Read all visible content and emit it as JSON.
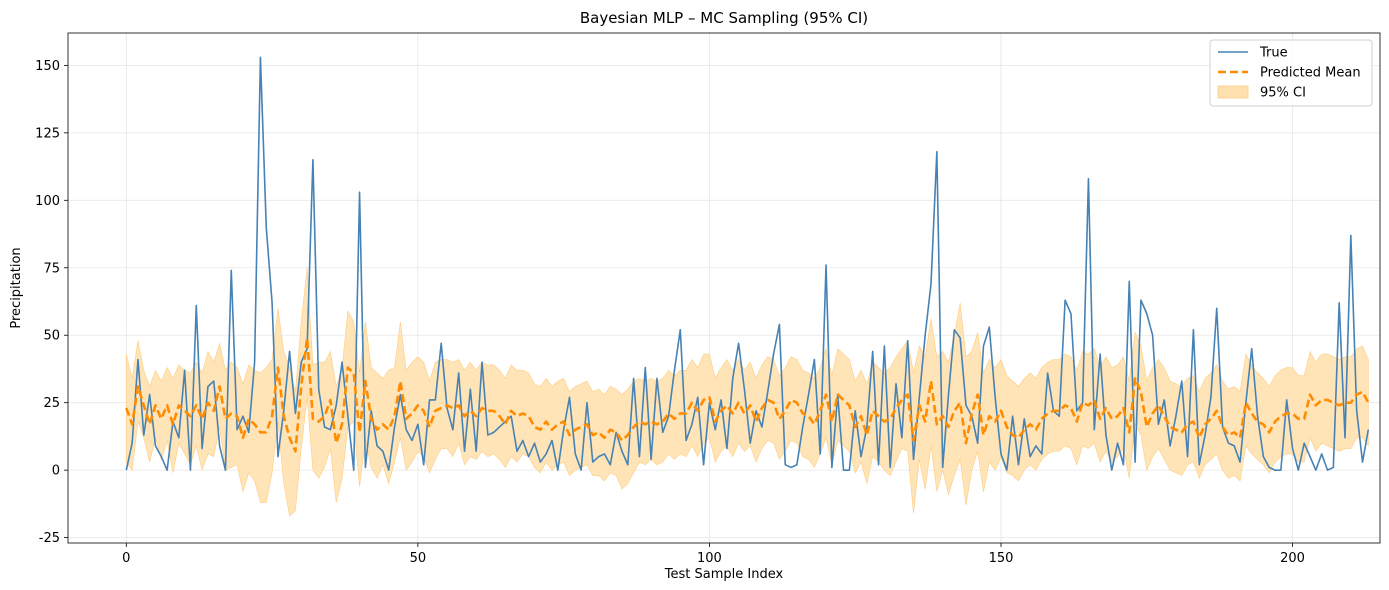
{
  "chart_data": {
    "type": "line",
    "title": "Bayesian MLP – MC Sampling (95% CI)",
    "xlabel": "Test Sample Index",
    "ylabel": "Precipitation",
    "xlim": [
      -10,
      215
    ],
    "ylim": [
      -27,
      162
    ],
    "xticks": [
      0,
      50,
      100,
      150,
      200
    ],
    "yticks": [
      -25,
      0,
      25,
      50,
      75,
      100,
      125,
      150
    ],
    "grid": true,
    "legend_position": "top-right",
    "colors": {
      "true": "#4682b4",
      "mean": "#ff8c00",
      "ci": "#ffe1b0",
      "ci_edge": "#ffcc80"
    },
    "series": [
      {
        "name": "True",
        "style": "solid",
        "values": [
          0,
          10,
          41,
          13,
          28,
          9,
          5,
          0,
          18,
          12,
          37,
          0,
          61,
          8,
          31,
          33,
          9,
          0,
          74,
          15,
          20,
          14,
          40,
          153,
          90,
          62,
          5,
          22,
          44,
          21,
          40,
          45,
          115,
          30,
          16,
          15,
          24,
          40,
          20,
          0,
          103,
          1,
          22,
          9,
          7,
          0,
          16,
          28,
          15,
          11,
          17,
          2,
          26,
          26,
          47,
          23,
          15,
          36,
          7,
          30,
          7,
          40,
          13,
          14,
          16,
          18,
          20,
          7,
          11,
          5,
          10,
          3,
          6,
          11,
          0,
          15,
          27,
          6,
          0,
          25,
          3,
          5,
          6,
          2,
          14,
          7,
          2,
          34,
          5,
          38,
          4,
          34,
          14,
          20,
          37,
          52,
          11,
          17,
          27,
          2,
          25,
          15,
          26,
          8,
          34,
          47,
          30,
          10,
          22,
          16,
          29,
          43,
          54,
          2,
          1,
          2,
          16,
          28,
          41,
          6,
          76,
          1,
          28,
          0,
          0,
          22,
          5,
          16,
          44,
          2,
          46,
          1,
          32,
          12,
          48,
          4,
          27,
          50,
          69,
          118,
          1,
          28,
          52,
          49,
          24,
          20,
          10,
          46,
          53,
          27,
          6,
          0,
          20,
          2,
          19,
          5,
          9,
          6,
          36,
          22,
          20,
          63,
          58,
          22,
          25,
          108,
          15,
          43,
          13,
          0,
          10,
          2,
          70,
          3,
          63,
          58,
          50,
          17,
          26,
          9,
          20,
          33,
          5,
          52,
          2,
          13,
          27,
          60,
          16,
          10,
          9,
          3,
          25,
          45,
          20,
          5,
          1,
          0,
          0,
          26,
          8,
          0,
          10,
          5,
          0,
          6,
          0,
          1,
          62,
          12,
          87,
          22,
          3,
          15
        ]
      },
      {
        "name": "Predicted Mean",
        "style": "dashed",
        "values": [
          23,
          17,
          31,
          24,
          17,
          24,
          19,
          24,
          17,
          24,
          22,
          20,
          24,
          19,
          25,
          22,
          31,
          19,
          21,
          20,
          12,
          19,
          17,
          14,
          14,
          20,
          38,
          20,
          12,
          7,
          31,
          49,
          19,
          18,
          20,
          26,
          10,
          17,
          38,
          36,
          14,
          33,
          19,
          15,
          17,
          15,
          20,
          33,
          19,
          21,
          24,
          22,
          16,
          22,
          23,
          24,
          23,
          24,
          20,
          22,
          20,
          23,
          22,
          22,
          20,
          17,
          22,
          20,
          21,
          20,
          16,
          15,
          18,
          15,
          17,
          18,
          13,
          15,
          16,
          17,
          13,
          14,
          12,
          15,
          14,
          11,
          13,
          16,
          18,
          17,
          18,
          17,
          18,
          21,
          19,
          21,
          21,
          25,
          22,
          26,
          27,
          18,
          22,
          24,
          21,
          25,
          21,
          24,
          18,
          23,
          26,
          25,
          19,
          22,
          26,
          25,
          21,
          20,
          17,
          22,
          28,
          18,
          28,
          26,
          24,
          16,
          20,
          13,
          22,
          20,
          18,
          19,
          23,
          26,
          28,
          11,
          24,
          18,
          33,
          17,
          20,
          16,
          22,
          25,
          10,
          21,
          28,
          13,
          20,
          18,
          22,
          16,
          13,
          12,
          15,
          17,
          15,
          19,
          21,
          22,
          22,
          24,
          23,
          18,
          25,
          24,
          26,
          19,
          23,
          19,
          20,
          23,
          14,
          34,
          29,
          16,
          21,
          24,
          20,
          16,
          15,
          14,
          17,
          18,
          12,
          17,
          19,
          22,
          16,
          13,
          14,
          12,
          25,
          21,
          18,
          17,
          14,
          18,
          20,
          21,
          21,
          19,
          19,
          28,
          24,
          26,
          26,
          25,
          24,
          25,
          25,
          28,
          29,
          25
        ]
      },
      {
        "name": "95% CI",
        "style": "band",
        "lower": [
          3,
          0,
          18,
          12,
          3,
          12,
          4,
          11,
          -1,
          10,
          6,
          2,
          9,
          0,
          6,
          5,
          16,
          0,
          1,
          2,
          -8,
          -1,
          -4,
          -12,
          -12,
          -1,
          18,
          -5,
          -17,
          -15,
          8,
          27,
          0,
          -3,
          1,
          8,
          -12,
          -3,
          16,
          18,
          -6,
          11,
          1,
          -3,
          2,
          -5,
          3,
          12,
          0,
          3,
          7,
          5,
          -1,
          4,
          8,
          8,
          5,
          10,
          2,
          5,
          4,
          7,
          5,
          6,
          4,
          1,
          5,
          3,
          6,
          5,
          1,
          -1,
          3,
          0,
          2,
          3,
          -2,
          0,
          1,
          2,
          -2,
          -2,
          -4,
          -1,
          -2,
          -7,
          -5,
          -1,
          3,
          2,
          4,
          2,
          3,
          6,
          4,
          6,
          5,
          9,
          5,
          10,
          12,
          3,
          7,
          9,
          5,
          10,
          7,
          9,
          3,
          8,
          11,
          10,
          4,
          7,
          11,
          10,
          5,
          4,
          1,
          6,
          12,
          2,
          11,
          9,
          7,
          -1,
          3,
          -5,
          5,
          3,
          0,
          -2,
          3,
          8,
          7,
          -16,
          4,
          -7,
          9,
          -8,
          0,
          -9,
          -2,
          4,
          -13,
          0,
          7,
          -8,
          3,
          0,
          5,
          -1,
          -2,
          -4,
          0,
          2,
          0,
          4,
          6,
          7,
          7,
          9,
          8,
          2,
          9,
          8,
          10,
          3,
          7,
          3,
          5,
          8,
          -3,
          17,
          13,
          0,
          5,
          8,
          4,
          0,
          -1,
          -2,
          2,
          3,
          -3,
          2,
          4,
          6,
          0,
          -3,
          -2,
          -4,
          9,
          6,
          4,
          2,
          -1,
          3,
          5,
          6,
          6,
          3,
          3,
          12,
          7,
          10,
          9,
          8,
          7,
          8,
          8,
          12,
          12,
          9
        ],
        "upper": [
          43,
          34,
          48,
          37,
          31,
          37,
          33,
          38,
          34,
          39,
          37,
          36,
          40,
          36,
          44,
          40,
          47,
          37,
          40,
          38,
          32,
          39,
          37,
          36,
          38,
          41,
          60,
          44,
          38,
          29,
          55,
          75,
          39,
          40,
          40,
          44,
          31,
          38,
          59,
          55,
          36,
          55,
          38,
          36,
          34,
          37,
          38,
          55,
          37,
          40,
          42,
          40,
          33,
          40,
          41,
          41,
          40,
          41,
          37,
          40,
          37,
          40,
          39,
          39,
          37,
          34,
          39,
          37,
          37,
          36,
          32,
          31,
          34,
          31,
          33,
          34,
          29,
          31,
          32,
          33,
          29,
          30,
          28,
          31,
          30,
          28,
          30,
          33,
          34,
          33,
          34,
          33,
          34,
          37,
          35,
          37,
          37,
          41,
          38,
          43,
          43,
          34,
          38,
          41,
          37,
          41,
          37,
          40,
          34,
          39,
          42,
          41,
          35,
          38,
          42,
          41,
          37,
          36,
          34,
          38,
          45,
          35,
          45,
          43,
          41,
          33,
          37,
          32,
          40,
          38,
          36,
          38,
          42,
          45,
          48,
          36,
          46,
          42,
          56,
          42,
          44,
          40,
          50,
          62,
          42,
          44,
          51,
          36,
          41,
          38,
          41,
          35,
          33,
          31,
          34,
          36,
          34,
          38,
          40,
          41,
          41,
          43,
          42,
          37,
          44,
          43,
          45,
          38,
          42,
          38,
          39,
          42,
          33,
          51,
          46,
          33,
          38,
          41,
          38,
          33,
          32,
          31,
          34,
          35,
          29,
          34,
          36,
          39,
          33,
          30,
          31,
          29,
          43,
          39,
          36,
          34,
          31,
          35,
          37,
          38,
          38,
          35,
          35,
          44,
          40,
          43,
          43,
          42,
          41,
          42,
          42,
          45,
          46,
          41
        ]
      }
    ]
  }
}
